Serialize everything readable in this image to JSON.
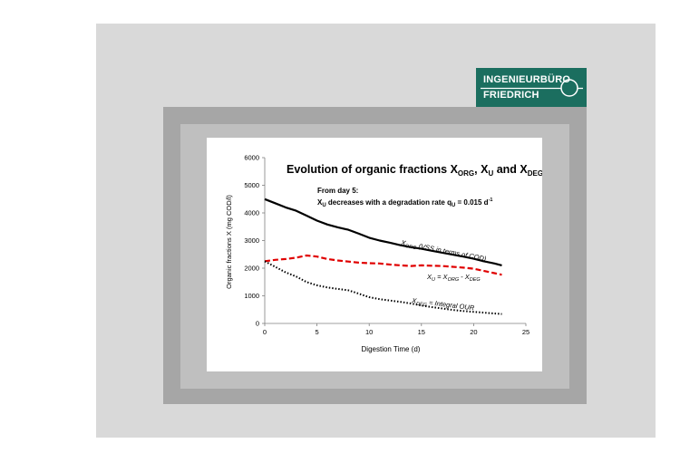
{
  "logo": {
    "line1": "INGENIEURBÜRO",
    "line2": "FRIEDRICH",
    "color": "#1b6e5f"
  },
  "chart_data": {
    "type": "line",
    "title": {
      "prefix": "Evolution of organic fractions X",
      "s1": "ORG",
      "mid1": ", X",
      "s2": "U",
      "mid2": " and X",
      "s3": "DEG"
    },
    "annotation": {
      "line1": "From day 5:",
      "line2_a": "X",
      "line2_sub": "U",
      "line2_b": " decreases with a degradation rate q",
      "line2_sub2": "U",
      "line2_c": " = 0.015 d",
      "line2_sup": "-1"
    },
    "xlabel": "Digestion Time (d)",
    "ylabel": "Organic fractions X  (mg COD/l)",
    "xlim": [
      0,
      25
    ],
    "ylim": [
      0,
      6000
    ],
    "xticks": [
      "0",
      "5",
      "10",
      "15",
      "20",
      "25"
    ],
    "yticks": [
      "0",
      "1000",
      "2000",
      "3000",
      "4000",
      "5000",
      "6000"
    ],
    "series": [
      {
        "label_main": "X",
        "label_sub": "ORG",
        "label_rest": " (VSS in terms of COD)",
        "color": "#000000",
        "style": "solid",
        "points": [
          [
            0,
            4500
          ],
          [
            1,
            4350
          ],
          [
            2,
            4200
          ],
          [
            3,
            4080
          ],
          [
            4,
            3900
          ],
          [
            5,
            3720
          ],
          [
            6,
            3580
          ],
          [
            7,
            3480
          ],
          [
            8,
            3390
          ],
          [
            9,
            3250
          ],
          [
            10,
            3100
          ],
          [
            11,
            3000
          ],
          [
            12,
            2920
          ],
          [
            13,
            2830
          ],
          [
            14,
            2760
          ],
          [
            15,
            2700
          ],
          [
            16,
            2630
          ],
          [
            17,
            2560
          ],
          [
            18,
            2490
          ],
          [
            19,
            2420
          ],
          [
            20,
            2340
          ],
          [
            21,
            2250
          ],
          [
            22,
            2170
          ],
          [
            22.7,
            2100
          ]
        ]
      },
      {
        "label_main": "X",
        "label_sub": "U",
        "label_rest": " = X",
        "label_sub2": "ORG",
        "label_rest2": " - X",
        "label_sub3": "DEG",
        "color": "#e00000",
        "style": "dashed",
        "points": [
          [
            0,
            2250
          ],
          [
            1,
            2300
          ],
          [
            2,
            2330
          ],
          [
            3,
            2380
          ],
          [
            4,
            2460
          ],
          [
            5,
            2420
          ],
          [
            6,
            2330
          ],
          [
            7,
            2280
          ],
          [
            8,
            2240
          ],
          [
            9,
            2200
          ],
          [
            10,
            2180
          ],
          [
            11,
            2170
          ],
          [
            12,
            2130
          ],
          [
            13,
            2100
          ],
          [
            14,
            2080
          ],
          [
            15,
            2100
          ],
          [
            16,
            2090
          ],
          [
            17,
            2080
          ],
          [
            18,
            2050
          ],
          [
            19,
            2020
          ],
          [
            20,
            1980
          ],
          [
            21,
            1900
          ],
          [
            22,
            1820
          ],
          [
            22.7,
            1760
          ]
        ]
      },
      {
        "label_main": "X",
        "label_sub": "DEG",
        "label_rest": " = Integral OUR",
        "color": "#000000",
        "style": "dotted",
        "points": [
          [
            0,
            2250
          ],
          [
            1,
            2050
          ],
          [
            2,
            1850
          ],
          [
            3,
            1700
          ],
          [
            4,
            1500
          ],
          [
            5,
            1380
          ],
          [
            6,
            1300
          ],
          [
            7,
            1250
          ],
          [
            8,
            1200
          ],
          [
            9,
            1080
          ],
          [
            10,
            950
          ],
          [
            11,
            880
          ],
          [
            12,
            830
          ],
          [
            13,
            780
          ],
          [
            14,
            720
          ],
          [
            15,
            650
          ],
          [
            16,
            590
          ],
          [
            17,
            540
          ],
          [
            18,
            490
          ],
          [
            19,
            450
          ],
          [
            20,
            420
          ],
          [
            21,
            390
          ],
          [
            22,
            360
          ],
          [
            22.7,
            340
          ]
        ]
      }
    ]
  }
}
